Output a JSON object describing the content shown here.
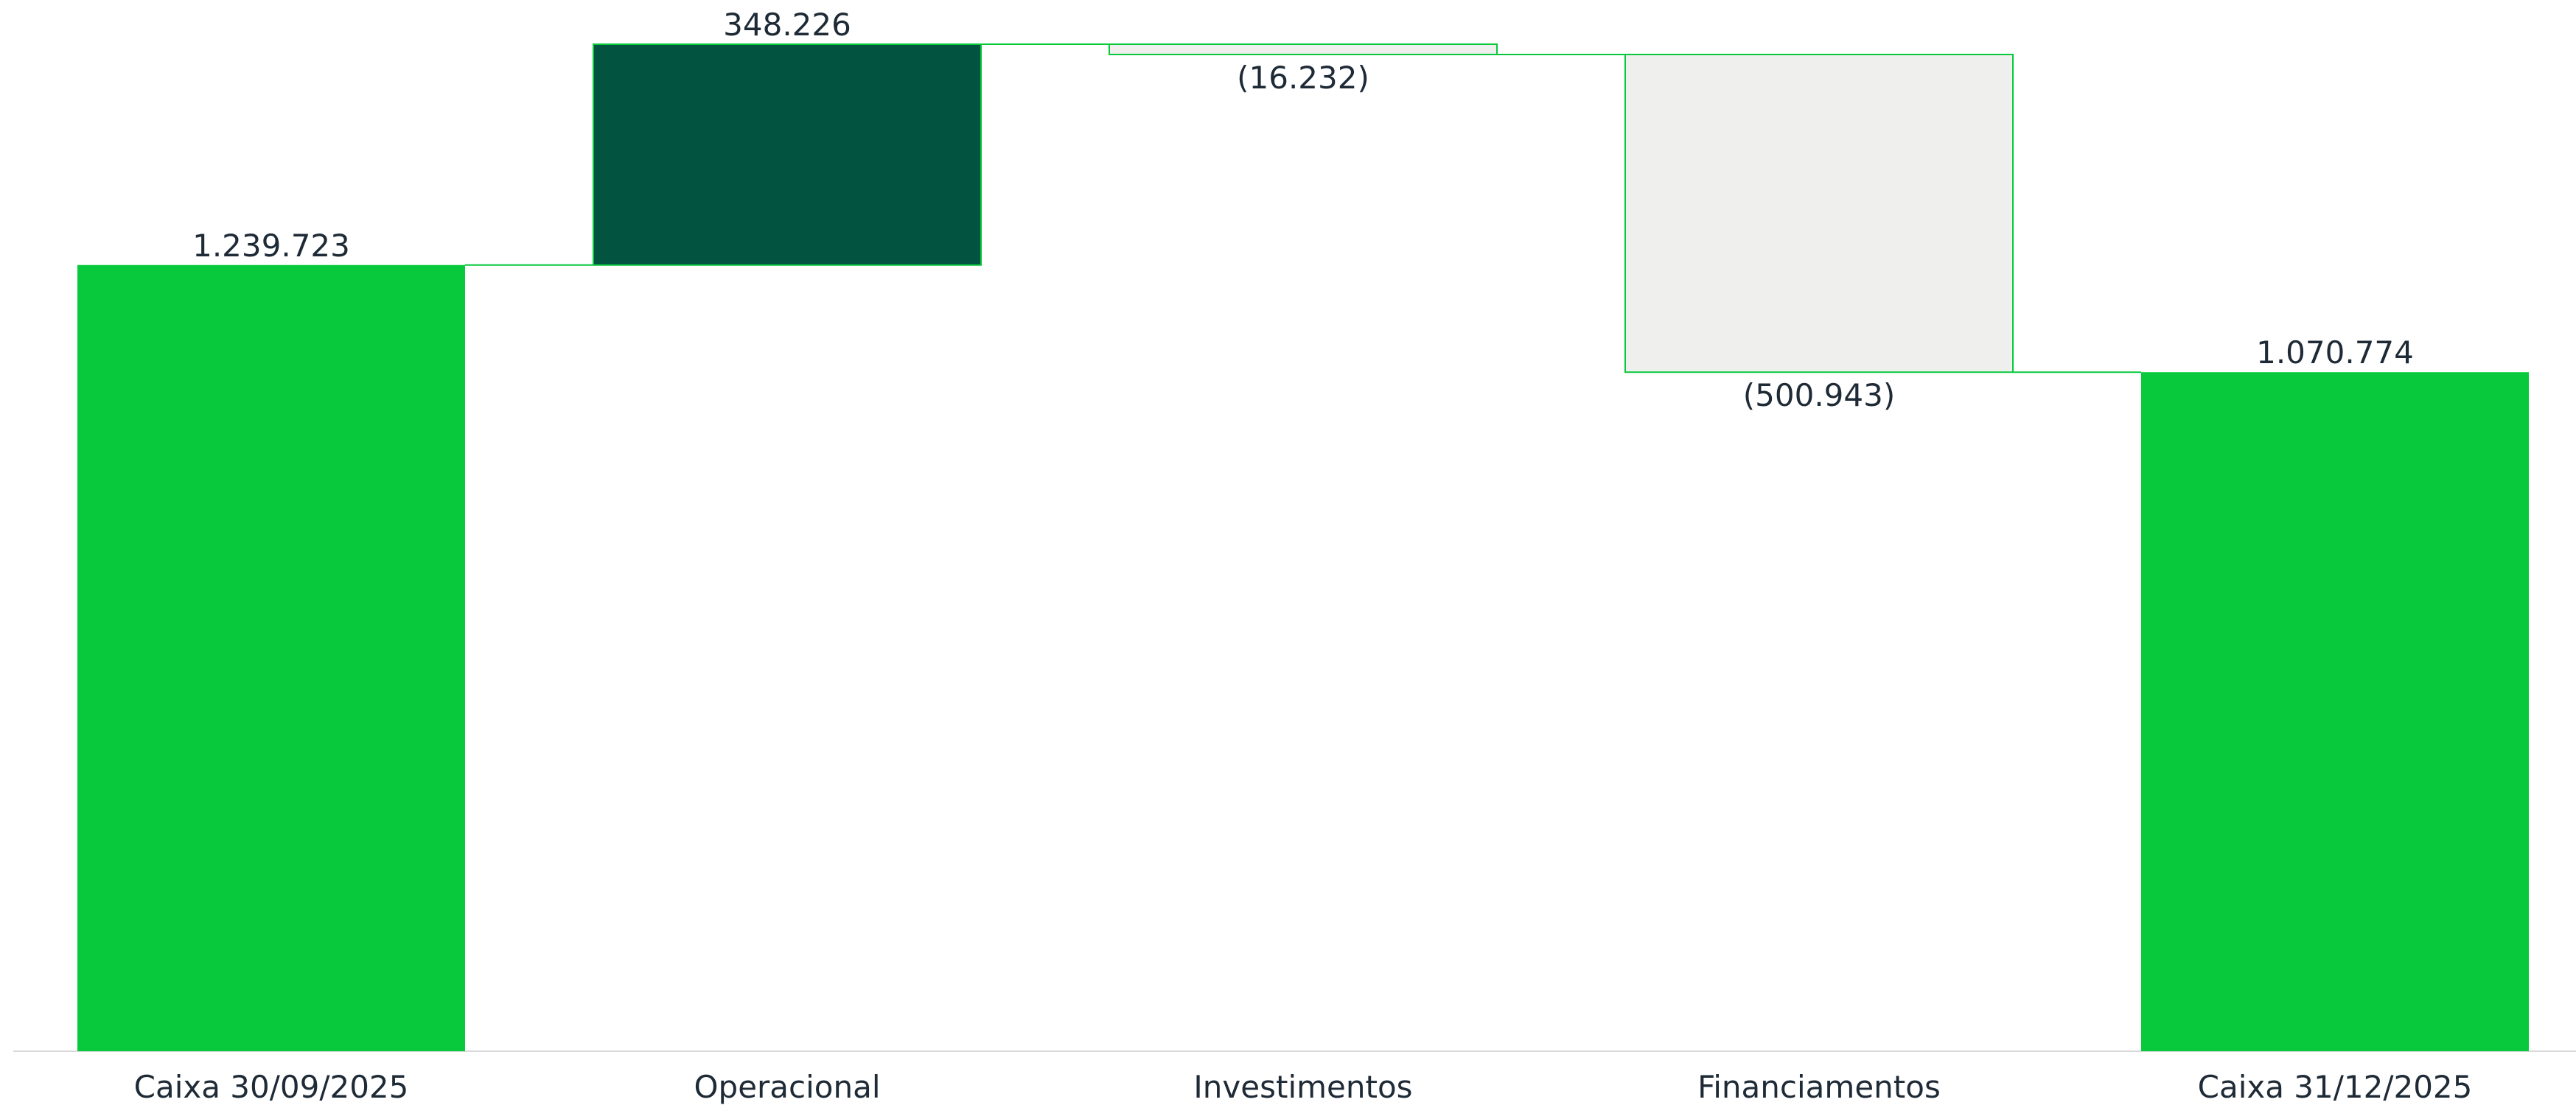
{
  "chart_data": {
    "type": "waterfall",
    "categories": [
      "Caixa 30/09/2025",
      "Operacional",
      "Investimentos",
      "Financiamentos",
      "Caixa 31/12/2025"
    ],
    "values": [
      1239723,
      348226,
      -16232,
      -500943,
      1070774
    ],
    "value_labels": [
      "1.239.723",
      "348.226",
      "(16.232)",
      "(500.943)",
      "1.070.774"
    ],
    "measure": [
      "absolute",
      "relative",
      "relative",
      "relative",
      "absolute"
    ],
    "colors": {
      "total": "#08c93c",
      "increase": "#02533f",
      "decrease": "#efefed",
      "border": "#08c93c"
    }
  }
}
